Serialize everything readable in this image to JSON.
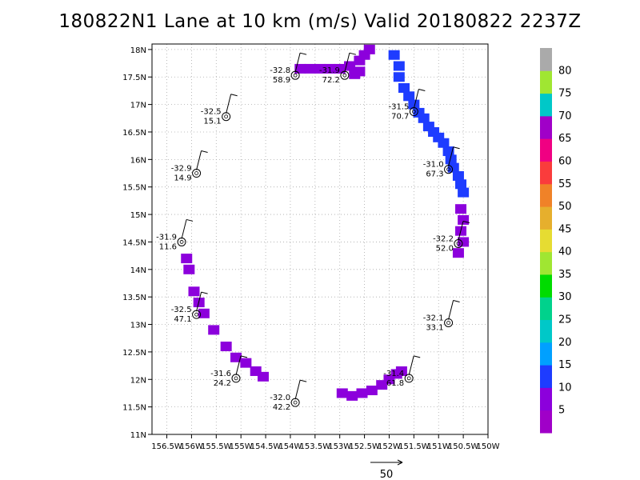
{
  "chart_data": {
    "type": "scatter",
    "title": "180822N1 Lane at 10 km (m/s) Valid 20180822 2237Z",
    "xlim": [
      -156.8,
      -150.0
    ],
    "ylim": [
      11.0,
      18.1
    ],
    "x_ticks": [
      -156.5,
      -156,
      -155.5,
      -155,
      -154.5,
      -154,
      -153.5,
      -153,
      -152.5,
      -152,
      -151.5,
      -151,
      -150.5,
      -150
    ],
    "x_tick_labels": [
      "156.5W",
      "156W",
      "155.5W",
      "155W",
      "154.5W",
      "154W",
      "153.5W",
      "153W",
      "152.5W",
      "152W",
      "151.5W",
      "151W",
      "150.5W",
      "150W"
    ],
    "y_ticks": [
      11,
      11.5,
      12,
      12.5,
      13,
      13.5,
      14,
      14.5,
      15,
      15.5,
      16,
      16.5,
      17,
      17.5,
      18
    ],
    "y_tick_labels": [
      "11N",
      "11.5N",
      "12N",
      "12.5N",
      "13N",
      "13.5N",
      "14N",
      "14.5N",
      "15N",
      "15.5N",
      "16N",
      "16.5N",
      "17N",
      "17.5N",
      "18N"
    ],
    "grid": true,
    "colorbar": {
      "labels": [
        "5",
        "10",
        "15",
        "20",
        "25",
        "30",
        "35",
        "40",
        "45",
        "50",
        "55",
        "60",
        "65",
        "70",
        "75",
        "80"
      ],
      "colors": [
        "#a000c8",
        "#8c00dc",
        "#1e3cff",
        "#00a0ff",
        "#00c8c8",
        "#00d28c",
        "#00dc00",
        "#a0e632",
        "#e6dc32",
        "#e6af2d",
        "#f08228",
        "#fa3c3c",
        "#f00082",
        "#a000c8",
        "#00c8c8",
        "#a0e632",
        "#aaaaaa"
      ]
    },
    "dropsondes": [
      {
        "x": -153.9,
        "y": 17.53,
        "temp": "-32.8",
        "wind": "58.9"
      },
      {
        "x": -152.9,
        "y": 17.53,
        "temp": "-31.9",
        "wind": "72.2"
      },
      {
        "x": -155.3,
        "y": 16.78,
        "temp": "-32.5",
        "wind": "15.1"
      },
      {
        "x": -151.5,
        "y": 16.87,
        "temp": "-31.5",
        "wind": "70.7"
      },
      {
        "x": -155.9,
        "y": 15.75,
        "temp": "-32.9",
        "wind": "14.9"
      },
      {
        "x": -150.8,
        "y": 15.82,
        "temp": "-31.0",
        "wind": "67.3"
      },
      {
        "x": -156.2,
        "y": 14.5,
        "temp": "-31.9",
        "wind": "11.6"
      },
      {
        "x": -150.6,
        "y": 14.47,
        "temp": "-32.2",
        "wind": "52.0"
      },
      {
        "x": -155.9,
        "y": 13.18,
        "temp": "-32.5",
        "wind": "47.1"
      },
      {
        "x": -150.8,
        "y": 13.03,
        "temp": "-32.1",
        "wind": "33.1"
      },
      {
        "x": -155.1,
        "y": 12.02,
        "temp": "-31.6",
        "wind": "24.2"
      },
      {
        "x": -151.6,
        "y": 12.02,
        "temp": "-31.4",
        "wind": "61.8"
      },
      {
        "x": -153.9,
        "y": 11.58,
        "temp": "-32.0",
        "wind": "42.2"
      }
    ],
    "swaths": [
      {
        "color": "#8c00dc",
        "points": [
          [
            -153.8,
            17.65
          ],
          [
            -153.6,
            17.65
          ],
          [
            -153.4,
            17.65
          ],
          [
            -153.2,
            17.65
          ],
          [
            -153.0,
            17.65
          ],
          [
            -152.8,
            17.7
          ],
          [
            -152.6,
            17.8
          ],
          [
            -152.5,
            17.9
          ],
          [
            -152.4,
            18.0
          ],
          [
            -152.7,
            17.55
          ],
          [
            -152.6,
            17.6
          ]
        ]
      },
      {
        "color": "#1e3cff",
        "points": [
          [
            -151.9,
            17.9
          ],
          [
            -151.8,
            17.7
          ],
          [
            -151.8,
            17.5
          ],
          [
            -151.7,
            17.3
          ],
          [
            -151.6,
            17.15
          ],
          [
            -151.5,
            17.0
          ],
          [
            -151.4,
            16.85
          ],
          [
            -151.3,
            16.75
          ],
          [
            -151.2,
            16.6
          ],
          [
            -151.1,
            16.5
          ],
          [
            -151.0,
            16.4
          ],
          [
            -150.9,
            16.3
          ],
          [
            -150.8,
            16.15
          ],
          [
            -150.75,
            16.0
          ],
          [
            -150.7,
            15.85
          ],
          [
            -150.6,
            15.7
          ],
          [
            -150.55,
            15.55
          ],
          [
            -150.5,
            15.4
          ]
        ]
      },
      {
        "color": "#8c00dc",
        "points": [
          [
            -150.55,
            15.1
          ],
          [
            -150.5,
            14.9
          ],
          [
            -150.55,
            14.7
          ],
          [
            -150.5,
            14.5
          ],
          [
            -150.6,
            14.3
          ]
        ]
      },
      {
        "color": "#8c00dc",
        "points": [
          [
            -156.1,
            14.2
          ],
          [
            -156.05,
            14.0
          ],
          [
            -155.95,
            13.6
          ],
          [
            -155.85,
            13.4
          ],
          [
            -155.75,
            13.2
          ],
          [
            -155.55,
            12.9
          ],
          [
            -155.3,
            12.6
          ],
          [
            -155.1,
            12.4
          ],
          [
            -154.9,
            12.3
          ],
          [
            -154.7,
            12.15
          ],
          [
            -154.55,
            12.05
          ]
        ]
      },
      {
        "color": "#8c00dc",
        "points": [
          [
            -152.95,
            11.75
          ],
          [
            -152.75,
            11.7
          ],
          [
            -152.55,
            11.75
          ],
          [
            -152.35,
            11.8
          ],
          [
            -152.15,
            11.9
          ],
          [
            -152.0,
            12.0
          ],
          [
            -151.85,
            12.1
          ],
          [
            -151.75,
            12.15
          ]
        ]
      }
    ],
    "reference_vector_label": "50"
  }
}
